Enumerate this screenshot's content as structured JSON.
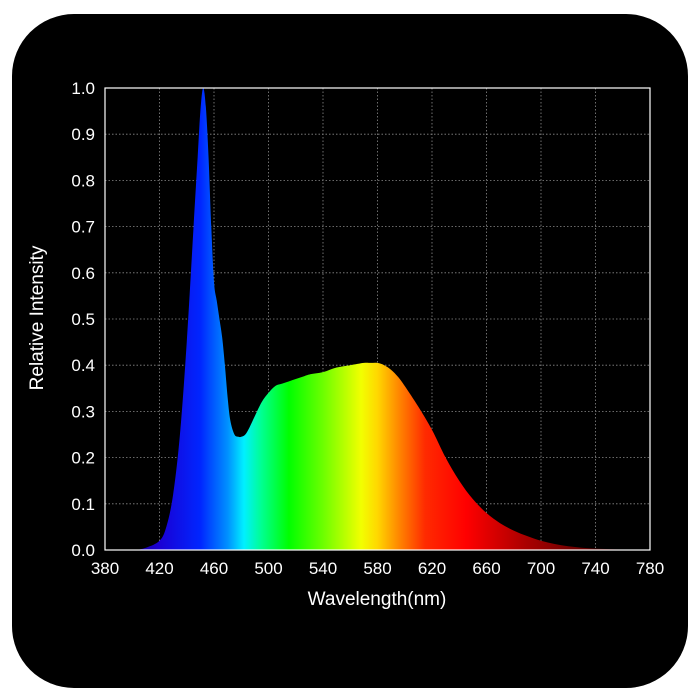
{
  "chart_data": {
    "type": "area",
    "title": "",
    "xlabel": "Wavelength(nm)",
    "ylabel": "Relative Intensity",
    "xlim": [
      380,
      780
    ],
    "ylim": [
      0,
      1.0
    ],
    "x_ticks": [
      380,
      420,
      460,
      500,
      540,
      580,
      620,
      660,
      700,
      740,
      780
    ],
    "y_ticks": [
      0.0,
      0.1,
      0.2,
      0.3,
      0.4,
      0.5,
      0.6,
      0.7,
      0.8,
      0.9,
      1.0
    ],
    "y_tick_labels": [
      "0.0",
      "0.1",
      "0.2",
      "0.3",
      "0.4",
      "0.5",
      "0.6",
      "0.7",
      "0.8",
      "0.9",
      "1.0"
    ],
    "grid": true,
    "fill": "visible-spectrum gradient",
    "series": [
      {
        "x": [
          380,
          400,
          410,
          420,
          425,
          430,
          435,
          440,
          445,
          448,
          450,
          452,
          454,
          456,
          458,
          460,
          462,
          464,
          466,
          468,
          470,
          472,
          475,
          478,
          480,
          483,
          486,
          490,
          495,
          500,
          505,
          510,
          515,
          520,
          525,
          530,
          540,
          550,
          560,
          570,
          575,
          580,
          585,
          590,
          595,
          600,
          610,
          620,
          630,
          640,
          650,
          660,
          670,
          680,
          690,
          700,
          710,
          720,
          730,
          740,
          750,
          760,
          770,
          780
        ],
        "y": [
          0.0,
          0.0,
          0.005,
          0.02,
          0.05,
          0.12,
          0.25,
          0.45,
          0.7,
          0.85,
          0.95,
          1.0,
          0.96,
          0.85,
          0.7,
          0.58,
          0.54,
          0.5,
          0.46,
          0.4,
          0.33,
          0.28,
          0.25,
          0.245,
          0.245,
          0.25,
          0.265,
          0.29,
          0.32,
          0.34,
          0.355,
          0.36,
          0.365,
          0.37,
          0.375,
          0.38,
          0.385,
          0.395,
          0.4,
          0.405,
          0.405,
          0.405,
          0.4,
          0.39,
          0.375,
          0.355,
          0.31,
          0.26,
          0.2,
          0.15,
          0.11,
          0.08,
          0.058,
          0.042,
          0.03,
          0.02,
          0.013,
          0.008,
          0.005,
          0.003,
          0.002,
          0.001,
          0.0005,
          0.0
        ]
      }
    ],
    "spectrum_colors": [
      {
        "nm": 380,
        "color": "#1b0066"
      },
      {
        "nm": 420,
        "color": "#1a00d4"
      },
      {
        "nm": 450,
        "color": "#0026ff"
      },
      {
        "nm": 470,
        "color": "#0090ff"
      },
      {
        "nm": 482,
        "color": "#00f0ff"
      },
      {
        "nm": 495,
        "color": "#00ff90"
      },
      {
        "nm": 515,
        "color": "#00ff00"
      },
      {
        "nm": 540,
        "color": "#6cff00"
      },
      {
        "nm": 568,
        "color": "#f2ff00"
      },
      {
        "nm": 580,
        "color": "#ffd700"
      },
      {
        "nm": 595,
        "color": "#ff8a00"
      },
      {
        "nm": 615,
        "color": "#ff2a00"
      },
      {
        "nm": 645,
        "color": "#ff0000"
      },
      {
        "nm": 690,
        "color": "#a80000"
      },
      {
        "nm": 740,
        "color": "#5a0000"
      },
      {
        "nm": 780,
        "color": "#3a0000"
      }
    ]
  }
}
